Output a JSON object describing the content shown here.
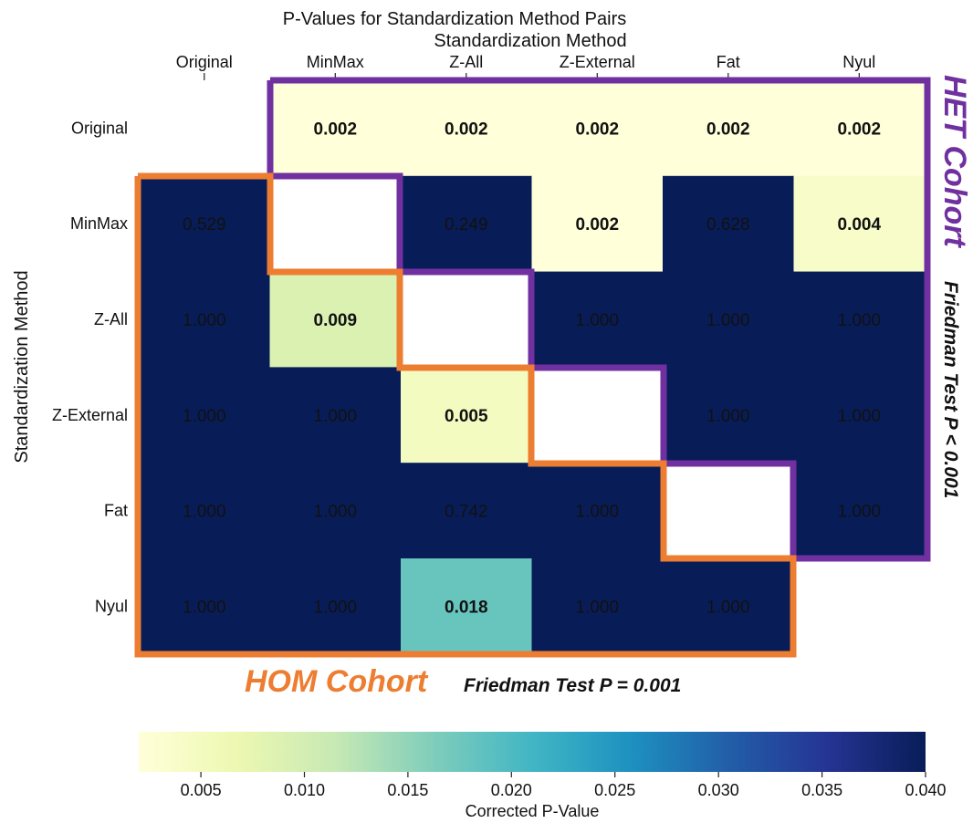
{
  "chart_data": {
    "type": "heatmap",
    "title": "P-Values for Standardization Method Pairs",
    "xlabel": "Standardization Method",
    "ylabel": "Standardization Method",
    "categories": [
      "Original",
      "MinMax",
      "Z-All",
      "Z-External",
      "Fat",
      "Nyul"
    ],
    "rows": [
      "Original",
      "MinMax",
      "Z-All",
      "Z-External",
      "Fat",
      "Nyul"
    ],
    "values": [
      [
        null,
        0.002,
        0.002,
        0.002,
        0.002,
        0.002
      ],
      [
        0.529,
        null,
        0.249,
        0.002,
        0.628,
        0.004
      ],
      [
        1.0,
        0.009,
        null,
        1.0,
        1.0,
        1.0
      ],
      [
        1.0,
        1.0,
        0.005,
        null,
        1.0,
        1.0
      ],
      [
        1.0,
        1.0,
        0.742,
        1.0,
        null,
        1.0
      ],
      [
        1.0,
        1.0,
        0.018,
        1.0,
        1.0,
        null
      ]
    ],
    "labels": [
      [
        "",
        "0.002",
        "0.002",
        "0.002",
        "0.002",
        "0.002"
      ],
      [
        "0.529",
        "",
        "0.249",
        "0.002",
        "0.628",
        "0.004"
      ],
      [
        "1.000",
        "0.009",
        "",
        "1.000",
        "1.000",
        "1.000"
      ],
      [
        "1.000",
        "1.000",
        "0.005",
        "",
        "1.000",
        "1.000"
      ],
      [
        "1.000",
        "1.000",
        "0.742",
        "1.000",
        "",
        "1.000"
      ],
      [
        "1.000",
        "1.000",
        "0.018",
        "1.000",
        "1.000",
        ""
      ]
    ],
    "significance_threshold": 0.05,
    "colorbar": {
      "label": "Corrected P-Value",
      "range": [
        0.002,
        0.04
      ],
      "ticks": [
        0.005,
        0.01,
        0.015,
        0.02,
        0.025,
        0.03,
        0.035,
        0.04
      ],
      "tick_labels": [
        "0.005",
        "0.010",
        "0.015",
        "0.020",
        "0.025",
        "0.030",
        "0.035",
        "0.040"
      ],
      "colormap": "YlGnBu",
      "placement": "bottom"
    },
    "annotations": {
      "het_label": "HET Cohort",
      "het_test": "Friedman Test P < 0.001",
      "hom_label": "HOM Cohort",
      "hom_test": "Friedman Test P = 0.001"
    },
    "colors": {
      "het_outline": "#7030a0",
      "hom_outline": "#ed7d31",
      "text_dark": "#111111",
      "text_light": "#ffffff"
    }
  }
}
